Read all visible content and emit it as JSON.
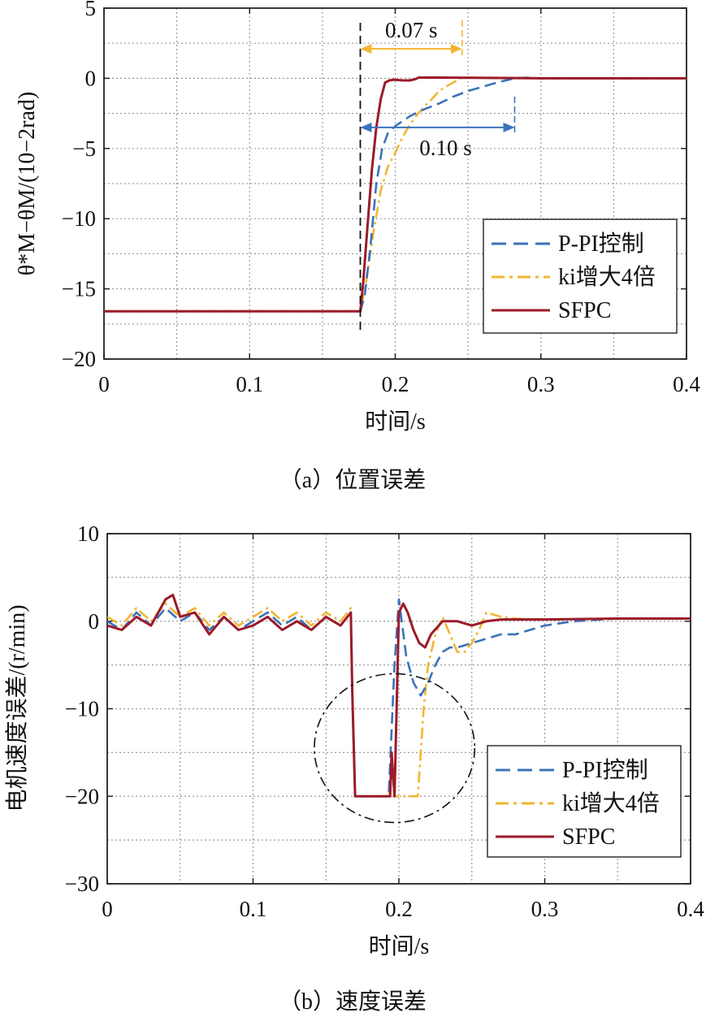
{
  "chart_data": [
    {
      "type": "line",
      "caption": "（a）位置误差",
      "xlabel": "时间/s",
      "ylabel": "θ*M−θM/(10−2rad)",
      "xlim": [
        0,
        0.4
      ],
      "ylim": [
        -20,
        5
      ],
      "xticks": [
        "0",
        "0.1",
        "0.2",
        "0.3",
        "0.4"
      ],
      "yticks": [
        "5",
        "0",
        "−5",
        "−10",
        "−15",
        "−20"
      ],
      "grid": true,
      "legend_position": "bottom-right",
      "annotations": [
        {
          "text": "0.07 s",
          "from": 0.176,
          "to": 0.246,
          "y": 2.1,
          "color": "#f2b632"
        },
        {
          "text": "0.10 s",
          "from": 0.176,
          "to": 0.282,
          "y": -3.5,
          "color": "#3b73b9"
        }
      ],
      "vline_x": 0.176,
      "series": [
        {
          "name": "P-PI控制",
          "color": "#3b73b9",
          "style": "dashed",
          "x": [
            0,
            0.176,
            0.179,
            0.183,
            0.187,
            0.191,
            0.195,
            0.2,
            0.21,
            0.22,
            0.23,
            0.24,
            0.25,
            0.26,
            0.27,
            0.282,
            0.29,
            0.3,
            0.4
          ],
          "y": [
            -16.6,
            -16.6,
            -15.5,
            -12,
            -7.5,
            -5,
            -3.9,
            -3.4,
            -2.7,
            -2.2,
            -1.8,
            -1.3,
            -0.9,
            -0.6,
            -0.3,
            0.0,
            0.05,
            0.0,
            0.0
          ]
        },
        {
          "name": "ki增大4倍",
          "color": "#f2b632",
          "style": "dashdot",
          "x": [
            0,
            0.176,
            0.18,
            0.185,
            0.19,
            0.195,
            0.2,
            0.205,
            0.21,
            0.215,
            0.22,
            0.225,
            0.23,
            0.238,
            0.246,
            0.26,
            0.3,
            0.4
          ],
          "y": [
            -16.6,
            -16.6,
            -14.5,
            -11,
            -8,
            -6.3,
            -5.3,
            -4.2,
            -3.3,
            -2.6,
            -2.0,
            -1.5,
            -0.9,
            -0.4,
            0.05,
            0.05,
            0.0,
            0.0
          ]
        },
        {
          "name": "SFPC",
          "color": "#9b1b2a",
          "style": "solid",
          "x": [
            0,
            0.176,
            0.178,
            0.181,
            0.184,
            0.187,
            0.19,
            0.193,
            0.196,
            0.199,
            0.205,
            0.21,
            0.214,
            0.216,
            0.23,
            0.3,
            0.4
          ],
          "y": [
            -16.6,
            -16.6,
            -14.5,
            -10.5,
            -6.5,
            -3.5,
            -1.5,
            -0.3,
            -0.15,
            -0.1,
            -0.15,
            -0.15,
            -0.05,
            0.05,
            0.05,
            0.0,
            0.0
          ]
        }
      ]
    },
    {
      "type": "line",
      "caption": "（b）速度误差",
      "xlabel": "时间/s",
      "ylabel": "电机速度误差/(r/min)",
      "xlim": [
        0,
        0.4
      ],
      "ylim": [
        -30,
        10
      ],
      "xticks": [
        "0",
        "0.1",
        "0.2",
        "0.3",
        "0.4"
      ],
      "yticks": [
        "10",
        "0",
        "−10",
        "−20",
        "−30"
      ],
      "grid": true,
      "legend_position": "bottom-right",
      "annotations": [
        {
          "text": "",
          "shape": "ellipse",
          "cx": 0.197,
          "cy": -14.5,
          "rx": 0.055,
          "ry": 8.5
        }
      ],
      "series": [
        {
          "name": "P-PI控制",
          "color": "#3b73b9",
          "style": "dashed",
          "x": [
            0,
            0.01,
            0.02,
            0.03,
            0.04,
            0.05,
            0.06,
            0.07,
            0.08,
            0.09,
            0.1,
            0.11,
            0.12,
            0.13,
            0.14,
            0.15,
            0.16,
            0.167,
            0.168,
            0.17,
            0.193,
            0.197,
            0.2,
            0.205,
            0.21,
            0.215,
            0.22,
            0.225,
            0.23,
            0.235,
            0.24,
            0.25,
            0.26,
            0.27,
            0.28,
            0.29,
            0.3,
            0.32,
            0.35,
            0.4
          ],
          "y": [
            0,
            -1,
            1,
            -0.5,
            1.5,
            0,
            1,
            -1,
            0.5,
            -1,
            0,
            1,
            -0.5,
            0.5,
            -1,
            0.5,
            -0.5,
            1,
            -8,
            -20,
            -20,
            -5,
            2.5,
            -4,
            -7,
            -8.5,
            -7,
            -5,
            -3.5,
            -3,
            -3,
            -2.5,
            -2,
            -1.5,
            -1.5,
            -1,
            -0.5,
            0,
            0.3,
            0.3
          ]
        },
        {
          "name": "ki增大4倍",
          "color": "#f2b632",
          "style": "dashdot",
          "x": [
            0,
            0.01,
            0.02,
            0.03,
            0.04,
            0.05,
            0.06,
            0.07,
            0.08,
            0.09,
            0.1,
            0.11,
            0.12,
            0.13,
            0.14,
            0.15,
            0.16,
            0.167,
            0.168,
            0.17,
            0.193,
            0.195,
            0.197,
            0.213,
            0.217,
            0.22,
            0.225,
            0.23,
            0.235,
            0.24,
            0.245,
            0.25,
            0.255,
            0.26,
            0.27,
            0.28,
            0.3,
            0.35,
            0.4
          ],
          "y": [
            0.5,
            -0.5,
            1.5,
            0,
            2,
            0.5,
            1.5,
            -0.5,
            1,
            -0.5,
            0.5,
            1.5,
            0,
            1,
            -0.5,
            1,
            0,
            1.5,
            -8,
            -20,
            -20,
            -17,
            -20,
            -20,
            -10,
            -5,
            -1.5,
            0.5,
            -1.5,
            -3.5,
            -3.5,
            -2.5,
            -1,
            1,
            0.5,
            0.3,
            0.2,
            0.3,
            0.3
          ]
        },
        {
          "name": "SFPC",
          "color": "#9b1b2a",
          "style": "solid",
          "x": [
            0,
            0.01,
            0.02,
            0.03,
            0.04,
            0.045,
            0.05,
            0.06,
            0.07,
            0.08,
            0.09,
            0.1,
            0.11,
            0.12,
            0.13,
            0.14,
            0.15,
            0.16,
            0.167,
            0.168,
            0.17,
            0.194,
            0.195,
            0.197,
            0.2,
            0.203,
            0.206,
            0.21,
            0.214,
            0.218,
            0.222,
            0.23,
            0.24,
            0.25,
            0.26,
            0.27,
            0.3,
            0.35,
            0.4
          ],
          "y": [
            -0.5,
            -1,
            0.5,
            -0.5,
            2.5,
            3,
            0.5,
            1,
            -1.5,
            0.5,
            -1,
            -0.5,
            0.5,
            -1,
            0,
            -1,
            0.5,
            -0.5,
            1,
            -8,
            -20,
            -20,
            -15,
            -20,
            1,
            2,
            1,
            -1,
            -2.5,
            -3,
            -1.5,
            0,
            0,
            -0.5,
            0,
            0.2,
            0.2,
            0.3,
            0.3
          ]
        }
      ]
    }
  ]
}
